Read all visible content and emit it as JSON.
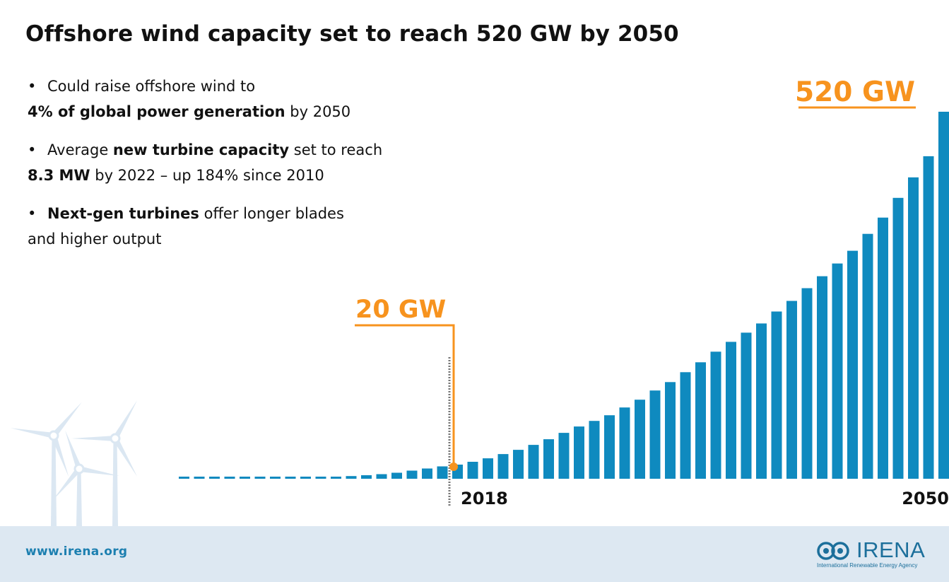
{
  "title": "Offshore wind capacity set to reach 520 GW by 2050",
  "bullets": [
    {
      "parts": [
        {
          "text": "Could raise offshore wind to",
          "bold": false
        }
      ]
    },
    {
      "parts": [
        {
          "text": "4% of global power generation",
          "bold": true
        },
        {
          "text": " by 2050",
          "bold": false
        }
      ]
    },
    {
      "parts": [
        {
          "text": "Average ",
          "bold": false
        },
        {
          "text": "new turbine capacity",
          "bold": true
        },
        {
          "text": " set to reach",
          "bold": false
        }
      ]
    },
    {
      "parts": [
        {
          "text": "8.3 MW",
          "bold": true
        },
        {
          "text": " by 2022 – up 184% since 2010",
          "bold": false
        }
      ]
    },
    {
      "parts": [
        {
          "text": "Next-gen turbines",
          "bold": true
        },
        {
          "text": " offer longer blades",
          "bold": false
        }
      ]
    },
    {
      "parts": [
        {
          "text": "and higher output",
          "bold": false
        }
      ]
    }
  ],
  "bullet_marker": "•",
  "footer": {
    "url": "www.irena.org",
    "logo_name": "IRENA",
    "logo_subtitle": "International Renewable Energy Agency"
  },
  "colors": {
    "bar": "#0f8abf",
    "accent": "#f7931e",
    "footer_bg": "#dde8f2",
    "turbine": "#dbe7f2"
  },
  "icons": [
    "wind-turbine-icon",
    "irena-logo-icon"
  ],
  "chart_data": {
    "type": "bar",
    "title": "Offshore wind capacity set to reach 520 GW by 2050",
    "x": [
      2000,
      2001,
      2002,
      2003,
      2004,
      2005,
      2006,
      2007,
      2008,
      2009,
      2010,
      2011,
      2012,
      2013,
      2014,
      2015,
      2016,
      2017,
      2018,
      2019,
      2020,
      2021,
      2022,
      2023,
      2024,
      2025,
      2026,
      2027,
      2028,
      2029,
      2030,
      2031,
      2032,
      2033,
      2034,
      2035,
      2036,
      2037,
      2038,
      2039,
      2040,
      2041,
      2042,
      2043,
      2044,
      2045,
      2046,
      2047,
      2048,
      2049,
      2050
    ],
    "values": [
      0.1,
      0.2,
      0.3,
      0.5,
      0.6,
      0.7,
      0.8,
      1.0,
      1.3,
      2.0,
      2.8,
      3.8,
      5.0,
      6.5,
      8.5,
      11.5,
      14.5,
      17.5,
      20,
      24,
      29,
      35,
      41,
      48,
      56,
      65,
      74,
      82,
      90,
      101,
      112,
      125,
      137,
      151,
      165,
      180,
      194,
      207,
      220,
      237,
      252,
      270,
      287,
      305,
      323,
      347,
      370,
      398,
      427,
      457,
      520
    ],
    "xtick_labels": {
      "2018": "2018",
      "2050": "2050"
    },
    "annotations": [
      {
        "x": 2018,
        "value": 20,
        "label": "20 GW"
      },
      {
        "x": 2050,
        "value": 520,
        "label": "520 GW"
      }
    ],
    "unit": "GW",
    "ylim": [
      0,
      520
    ],
    "grid": false,
    "legend": "none"
  }
}
